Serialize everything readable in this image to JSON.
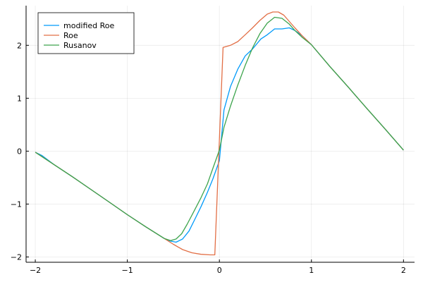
{
  "chart_data": {
    "type": "line",
    "title": "",
    "xlabel": "",
    "ylabel": "",
    "xlim": [
      -2.1,
      2.12
    ],
    "ylim": [
      -2.1,
      2.75
    ],
    "xticks": [
      -2,
      -1,
      0,
      1,
      2
    ],
    "yticks": [
      -2,
      -1,
      0,
      1,
      2
    ],
    "xtick_labels": [
      "−2",
      "−1",
      "0",
      "1",
      "2"
    ],
    "ytick_labels": [
      "−2",
      "−1",
      "0",
      "1",
      "2"
    ],
    "grid": true,
    "legend_position": "top-left",
    "series": [
      {
        "name": "modified Roe",
        "color": "#009AFA",
        "x": [
          -2.0,
          -1.93,
          -1.8,
          -1.6,
          -1.4,
          -1.2,
          -1.0,
          -0.8,
          -0.6,
          -0.53,
          -0.47,
          -0.4,
          -0.33,
          -0.27,
          -0.2,
          -0.13,
          -0.07,
          0.0,
          0.05,
          0.12,
          0.2,
          0.28,
          0.36,
          0.45,
          0.52,
          0.6,
          0.68,
          0.76,
          0.82,
          0.9,
          1.0,
          1.2,
          1.4,
          1.6,
          1.8,
          2.0
        ],
        "y": [
          -0.02,
          -0.08,
          -0.25,
          -0.48,
          -0.72,
          -0.96,
          -1.2,
          -1.43,
          -1.65,
          -1.7,
          -1.72,
          -1.66,
          -1.51,
          -1.3,
          -1.05,
          -0.78,
          -0.52,
          -0.18,
          0.78,
          1.22,
          1.55,
          1.8,
          1.93,
          2.12,
          2.2,
          2.31,
          2.31,
          2.33,
          2.28,
          2.18,
          2.01,
          1.6,
          1.21,
          0.81,
          0.42,
          0.02
        ]
      },
      {
        "name": "Roe",
        "color": "#E26F46",
        "x": [
          -2.0,
          -1.8,
          -1.6,
          -1.4,
          -1.2,
          -1.0,
          -0.8,
          -0.6,
          -0.5,
          -0.4,
          -0.3,
          -0.2,
          -0.1,
          -0.05,
          0.04,
          0.12,
          0.2,
          0.28,
          0.36,
          0.44,
          0.52,
          0.58,
          0.64,
          0.7,
          0.76,
          0.82,
          0.9,
          1.0,
          1.2,
          1.4,
          1.6,
          1.8,
          2.0
        ],
        "y": [
          -0.02,
          -0.25,
          -0.48,
          -0.72,
          -0.96,
          -1.2,
          -1.43,
          -1.65,
          -1.76,
          -1.86,
          -1.92,
          -1.95,
          -1.96,
          -1.96,
          1.96,
          2.0,
          2.07,
          2.2,
          2.33,
          2.47,
          2.59,
          2.63,
          2.63,
          2.57,
          2.45,
          2.33,
          2.18,
          2.01,
          1.6,
          1.21,
          0.81,
          0.42,
          0.02
        ]
      },
      {
        "name": "Rusanov",
        "color": "#3DA44D",
        "x": [
          -2.0,
          -1.8,
          -1.6,
          -1.4,
          -1.2,
          -1.0,
          -0.8,
          -0.6,
          -0.53,
          -0.47,
          -0.41,
          -0.35,
          -0.28,
          -0.2,
          -0.13,
          -0.07,
          0.0,
          0.05,
          0.12,
          0.2,
          0.28,
          0.36,
          0.44,
          0.52,
          0.6,
          0.68,
          0.76,
          0.82,
          0.9,
          1.0,
          1.2,
          1.4,
          1.6,
          1.8,
          2.0
        ],
        "y": [
          -0.02,
          -0.25,
          -0.48,
          -0.72,
          -0.96,
          -1.2,
          -1.43,
          -1.65,
          -1.69,
          -1.66,
          -1.56,
          -1.38,
          -1.15,
          -0.88,
          -0.62,
          -0.32,
          0.02,
          0.45,
          0.85,
          1.25,
          1.62,
          1.95,
          2.22,
          2.42,
          2.53,
          2.51,
          2.4,
          2.28,
          2.15,
          2.01,
          1.6,
          1.21,
          0.81,
          0.42,
          0.02
        ]
      }
    ]
  }
}
